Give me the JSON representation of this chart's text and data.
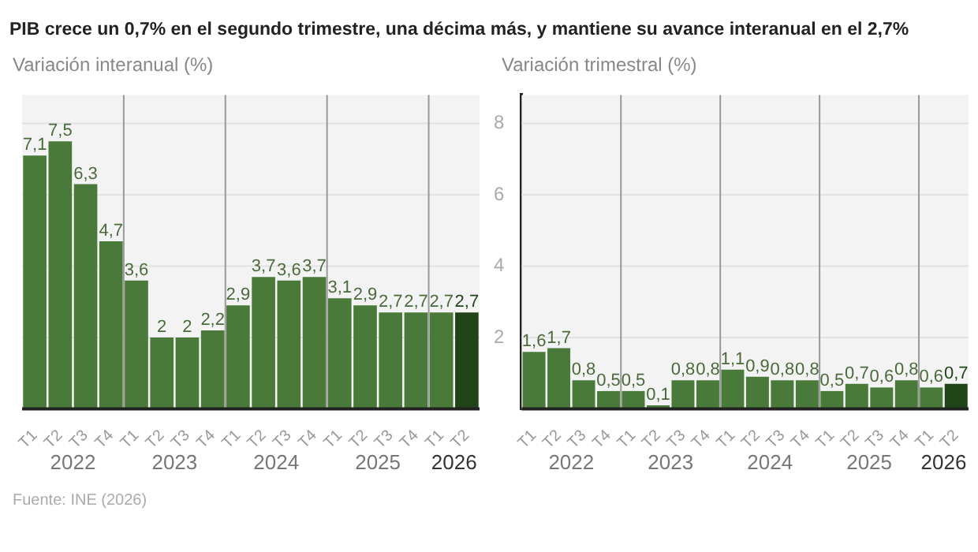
{
  "chart_data": [
    {
      "type": "bar",
      "title": "PIB crece un 0,7% en el segundo trimestre, una décima más, y mantiene su avance interanual en el 2,7%",
      "ylabel": "Variación interanual (%)",
      "categories": [
        "T1",
        "T2",
        "T3",
        "T4",
        "T1",
        "T2",
        "T3",
        "T4",
        "T1",
        "T2",
        "T3",
        "T4",
        "T1",
        "T2",
        "T3",
        "T4",
        "T1",
        "T2"
      ],
      "values": [
        7.1,
        7.5,
        6.3,
        4.7,
        3.6,
        2,
        2,
        2.2,
        2.9,
        3.7,
        3.6,
        3.7,
        3.1,
        2.9,
        2.7,
        2.7,
        2.7,
        2.7
      ],
      "colors": [
        "#4a7a3a",
        "#4a7a3a",
        "#4a7a3a",
        "#4a7a3a",
        "#4a7a3a",
        "#4a7a3a",
        "#4a7a3a",
        "#4a7a3a",
        "#4a7a3a",
        "#4a7a3a",
        "#4a7a3a",
        "#4a7a3a",
        "#4a7a3a",
        "#4a7a3a",
        "#4a7a3a",
        "#4a7a3a",
        "#4a7a3a",
        "#1f4418"
      ],
      "ylim": [
        0,
        8.8
      ],
      "yticks": [
        {
          "value": 0,
          "label": null
        },
        {
          "value": 2,
          "label": null
        },
        {
          "value": 4,
          "label": null
        },
        {
          "value": 6,
          "label": null
        },
        {
          "value": 8,
          "label": null
        }
      ],
      "tick_labels": "x",
      "grid": true,
      "value_labels": [
        "7,1",
        "7,5",
        "6,3",
        "4,7",
        "3,6",
        "2",
        "2",
        "2,2",
        "2,9",
        "3,7",
        "3,6",
        "3,7",
        "3,1",
        "2,9",
        "2,7",
        "2,7",
        "2,7",
        "2,7"
      ],
      "annotations": [
        "2022",
        "2023",
        "2024",
        "2025",
        "2026",
        "Fuente: INE (2026)"
      ]
    },
    {
      "type": "bar",
      "ylabel": "Variación trimestral (%)",
      "categories": [
        "T1",
        "T2",
        "T3",
        "T4",
        "T1",
        "T2",
        "T3",
        "T4",
        "T1",
        "T2",
        "T3",
        "T4",
        "T1",
        "T2",
        "T3",
        "T4",
        "T1",
        "T2"
      ],
      "values": [
        1.6,
        1.7,
        0.8,
        0.5,
        0.5,
        0.1,
        0.8,
        0.8,
        1.1,
        0.9,
        0.8,
        0.8,
        0.5,
        0.7,
        0.6,
        0.8,
        0.6,
        0.7
      ],
      "colors": [
        "#4a7a3a",
        "#4a7a3a",
        "#4a7a3a",
        "#4a7a3a",
        "#4a7a3a",
        "#4a7a3a",
        "#4a7a3a",
        "#4a7a3a",
        "#4a7a3a",
        "#4a7a3a",
        "#4a7a3a",
        "#4a7a3a",
        "#4a7a3a",
        "#4a7a3a",
        "#4a7a3a",
        "#4a7a3a",
        "#4a7a3a",
        "#1f4418"
      ],
      "ylim": [
        0,
        8.8
      ],
      "yticks": [
        {
          "value": 0,
          "label": null
        },
        2,
        4,
        6,
        8
      ],
      "grid": true,
      "value_labels": [
        "1,6",
        "1,7",
        "0,8",
        "0,5",
        "0,5",
        "0,1",
        "0,8",
        "0,8",
        "1,1",
        "0,9",
        "0,8",
        "0,8",
        "0,5",
        "0,7",
        "0,6",
        "0,8",
        "0,6",
        "0,7"
      ],
      "annotations": [
        "2022",
        "2023",
        "2024",
        "2025",
        "2026"
      ]
    }
  ]
}
